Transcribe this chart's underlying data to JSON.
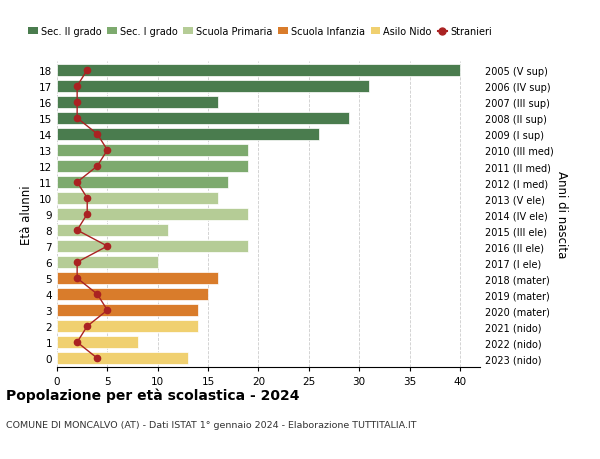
{
  "ages": [
    18,
    17,
    16,
    15,
    14,
    13,
    12,
    11,
    10,
    9,
    8,
    7,
    6,
    5,
    4,
    3,
    2,
    1,
    0
  ],
  "years": [
    "2005 (V sup)",
    "2006 (IV sup)",
    "2007 (III sup)",
    "2008 (II sup)",
    "2009 (I sup)",
    "2010 (III med)",
    "2011 (II med)",
    "2012 (I med)",
    "2013 (V ele)",
    "2014 (IV ele)",
    "2015 (III ele)",
    "2016 (II ele)",
    "2017 (I ele)",
    "2018 (mater)",
    "2019 (mater)",
    "2020 (mater)",
    "2021 (nido)",
    "2022 (nido)",
    "2023 (nido)"
  ],
  "bar_values": [
    40,
    31,
    16,
    29,
    26,
    19,
    19,
    17,
    16,
    19,
    11,
    19,
    10,
    16,
    15,
    14,
    14,
    8,
    13
  ],
  "bar_colors": [
    "#4a7c4e",
    "#4a7c4e",
    "#4a7c4e",
    "#4a7c4e",
    "#4a7c4e",
    "#7daa6e",
    "#7daa6e",
    "#7daa6e",
    "#b5cc96",
    "#b5cc96",
    "#b5cc96",
    "#b5cc96",
    "#b5cc96",
    "#d97c2b",
    "#d97c2b",
    "#d97c2b",
    "#f0d070",
    "#f0d070",
    "#f0d070"
  ],
  "stranieri_values": [
    3,
    2,
    2,
    2,
    4,
    5,
    4,
    2,
    3,
    3,
    2,
    5,
    2,
    2,
    4,
    5,
    3,
    2,
    4
  ],
  "stranieri_color": "#aa2222",
  "title_bold": "Popolazione per età scolastica - 2024",
  "subtitle": "COMUNE DI MONCALVO (AT) - Dati ISTAT 1° gennaio 2024 - Elaborazione TUTTITALIA.IT",
  "ylabel_left": "Età alunni",
  "ylabel_right": "Anni di nascita",
  "xlim": [
    0,
    42
  ],
  "xticks": [
    0,
    5,
    10,
    15,
    20,
    25,
    30,
    35,
    40
  ],
  "legend_labels": [
    "Sec. II grado",
    "Sec. I grado",
    "Scuola Primaria",
    "Scuola Infanzia",
    "Asilo Nido",
    "Stranieri"
  ],
  "legend_colors": [
    "#4a7c4e",
    "#7daa6e",
    "#b5cc96",
    "#d97c2b",
    "#f0d070",
    "#aa2222"
  ],
  "bg_color": "#ffffff",
  "grid_color": "#cccccc"
}
